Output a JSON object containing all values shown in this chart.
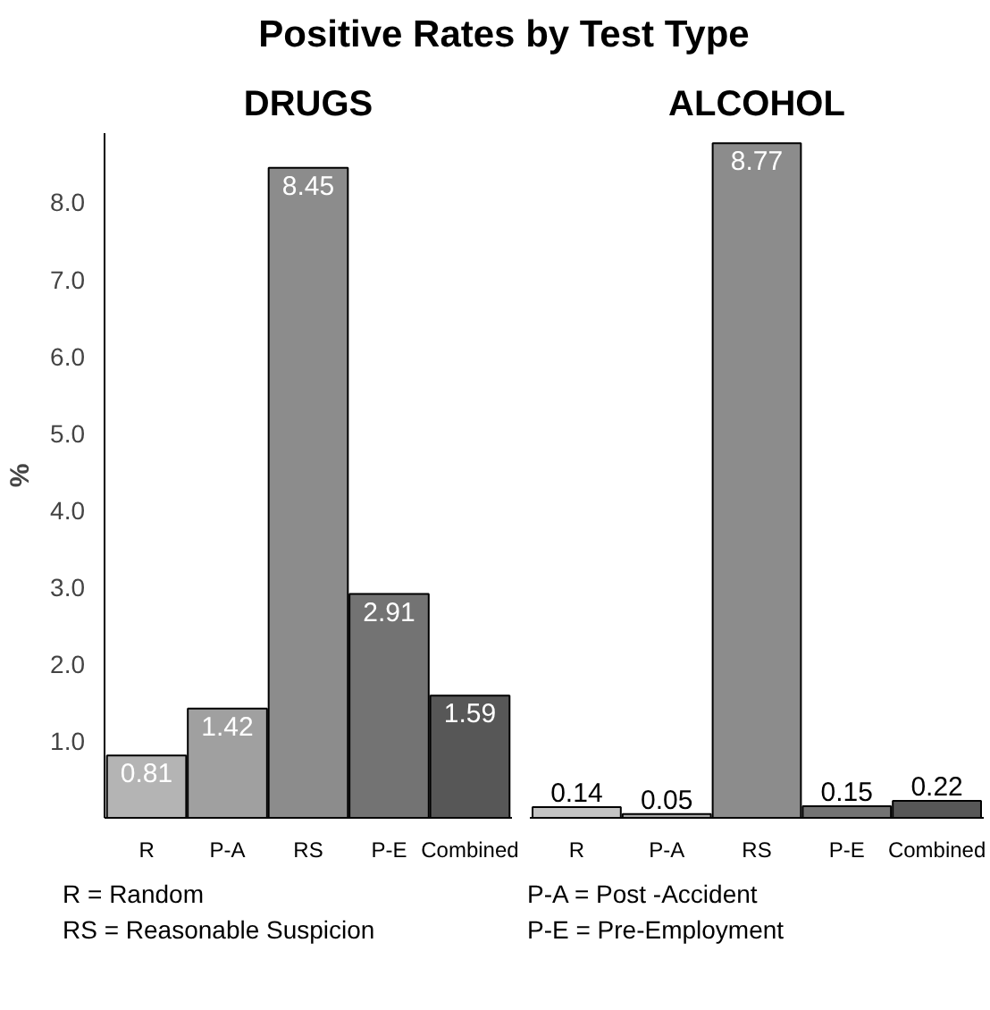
{
  "chart_data": [
    {
      "type": "bar",
      "title": "Positive Rates by Test Type",
      "subtitle": "DRUGS",
      "ylabel": "%",
      "categories": [
        "R",
        "P-A",
        "RS",
        "P-E",
        "Combined"
      ],
      "values": [
        0.81,
        1.42,
        8.45,
        2.91,
        1.59
      ],
      "colors": [
        "#b4b4b4",
        "#a0a0a0",
        "#8c8c8c",
        "#737373",
        "#575757"
      ],
      "data_labels": true,
      "ylim": [
        0,
        8.9
      ],
      "yticks": [
        {
          "value": 1,
          "label": "1.0"
        },
        {
          "value": 2,
          "label": "2.0"
        },
        {
          "value": 3,
          "label": "3.0"
        },
        {
          "value": 4,
          "label": "4.0"
        },
        {
          "value": 5,
          "label": "5.0"
        },
        {
          "value": 6,
          "label": "6.0"
        },
        {
          "value": 7,
          "label": "7.0"
        },
        {
          "value": 8,
          "label": "8.0"
        }
      ],
      "grid": false,
      "annotations": [
        "R = Random",
        "P-A = Post -Accident",
        "RS = Reasonable Suspicion",
        "P-E = Pre-Employment"
      ]
    },
    {
      "type": "bar",
      "subtitle": "ALCOHOL",
      "categories": [
        "R",
        "P-A",
        "RS",
        "P-E",
        "Combined"
      ],
      "values": [
        0.14,
        0.05,
        8.77,
        0.15,
        0.22
      ],
      "colors": [
        "#c4c4c4",
        "#a8a8a8",
        "#8c8c8c",
        "#737373",
        "#575757"
      ],
      "data_labels": true,
      "tick_labels": "x",
      "grid": false
    }
  ]
}
